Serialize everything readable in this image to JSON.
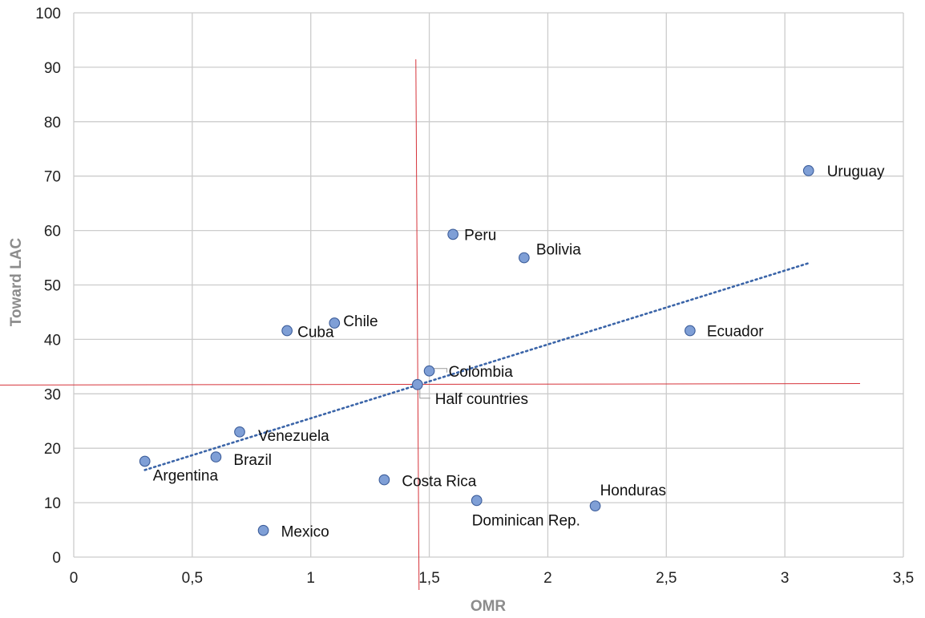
{
  "chart_data": {
    "type": "scatter",
    "xlabel": "OMR",
    "ylabel": "Toward LAC",
    "xlim": [
      0,
      3.5
    ],
    "ylim": [
      0,
      100
    ],
    "x_ticks": [
      0,
      0.5,
      1,
      1.5,
      2,
      2.5,
      3,
      3.5
    ],
    "x_tick_labels": [
      "0",
      "0,5",
      "1",
      "1,5",
      "2",
      "2,5",
      "3",
      "3,5"
    ],
    "y_ticks": [
      0,
      10,
      20,
      30,
      40,
      50,
      60,
      70,
      80,
      90,
      100
    ],
    "y_tick_labels": [
      "0",
      "10",
      "20",
      "30",
      "40",
      "50",
      "60",
      "70",
      "80",
      "90",
      "100"
    ],
    "grid": true,
    "points": [
      {
        "label": "Uruguay",
        "x": 3.1,
        "y": 71
      },
      {
        "label": "Peru",
        "x": 1.6,
        "y": 59.3
      },
      {
        "label": "Bolivia",
        "x": 1.9,
        "y": 55
      },
      {
        "label": "Chile",
        "x": 1.1,
        "y": 43
      },
      {
        "label": "Cuba",
        "x": 0.9,
        "y": 41.6
      },
      {
        "label": "Ecuador",
        "x": 2.6,
        "y": 41.6
      },
      {
        "label": "Colombia",
        "x": 1.5,
        "y": 34.2
      },
      {
        "label": "Half countries",
        "x": 1.45,
        "y": 31.7
      },
      {
        "label": "Venezuela",
        "x": 0.7,
        "y": 23
      },
      {
        "label": "Brazil",
        "x": 0.6,
        "y": 18.4
      },
      {
        "label": "Argentina",
        "x": 0.3,
        "y": 17.6
      },
      {
        "label": "Costa Rica",
        "x": 1.31,
        "y": 14.2
      },
      {
        "label": "Dominican Rep.",
        "x": 1.7,
        "y": 10.4
      },
      {
        "label": "Honduras",
        "x": 2.2,
        "y": 9.4
      },
      {
        "label": "Mexico",
        "x": 0.8,
        "y": 4.9
      }
    ],
    "trendline": {
      "type": "linear",
      "x": [
        0.3,
        3.1
      ],
      "y": [
        16,
        54
      ]
    },
    "reference_lines": {
      "vertical_x": 1.45,
      "horizontal_y": 31.7
    },
    "colors": {
      "point_fill": "#7f9fd6",
      "point_stroke": "#3c5d9a",
      "trendline": "#3a64a8",
      "reference": "#d6333a",
      "grid": "#cccccc"
    }
  }
}
